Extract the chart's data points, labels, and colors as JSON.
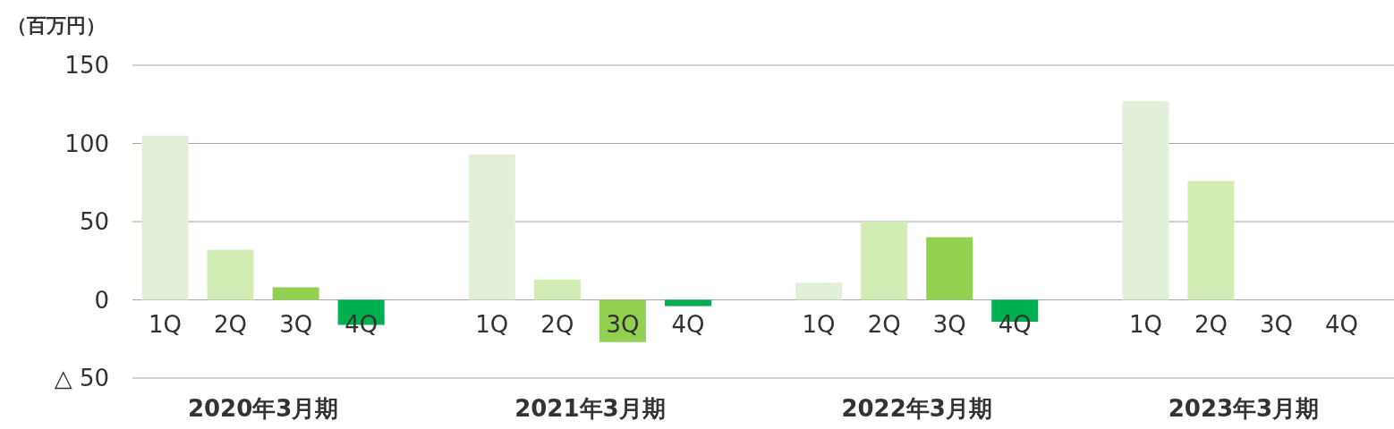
{
  "chart_data": {
    "type": "bar",
    "ylabel": "（百万円）",
    "categories": [
      "1Q",
      "2Q",
      "3Q",
      "4Q",
      "1Q",
      "2Q",
      "3Q",
      "4Q",
      "1Q",
      "2Q",
      "3Q",
      "4Q",
      "1Q",
      "2Q",
      "3Q",
      "4Q"
    ],
    "values": [
      105,
      32,
      8,
      -16,
      93,
      13,
      -27,
      -4,
      11,
      50,
      40,
      -14,
      127,
      76,
      null,
      null
    ],
    "colors": [
      "#e2efd9",
      "#d3ecb4",
      "#92d050",
      "#00b050",
      "#e2efd9",
      "#d3ecb4",
      "#92d050",
      "#00b050",
      "#e2efd9",
      "#d3ecb4",
      "#92d050",
      "#00b050",
      "#e2efd9",
      "#d3ecb4",
      null,
      null
    ],
    "annotations": [
      "2020年3月期",
      "2021年3月期",
      "2022年3月期",
      "2023年3月期"
    ],
    "ylim": [
      -50,
      150
    ],
    "yticks": [
      {
        "value": -50,
        "label": "△ 50"
      },
      0,
      50,
      100,
      150
    ],
    "grid": "y"
  }
}
